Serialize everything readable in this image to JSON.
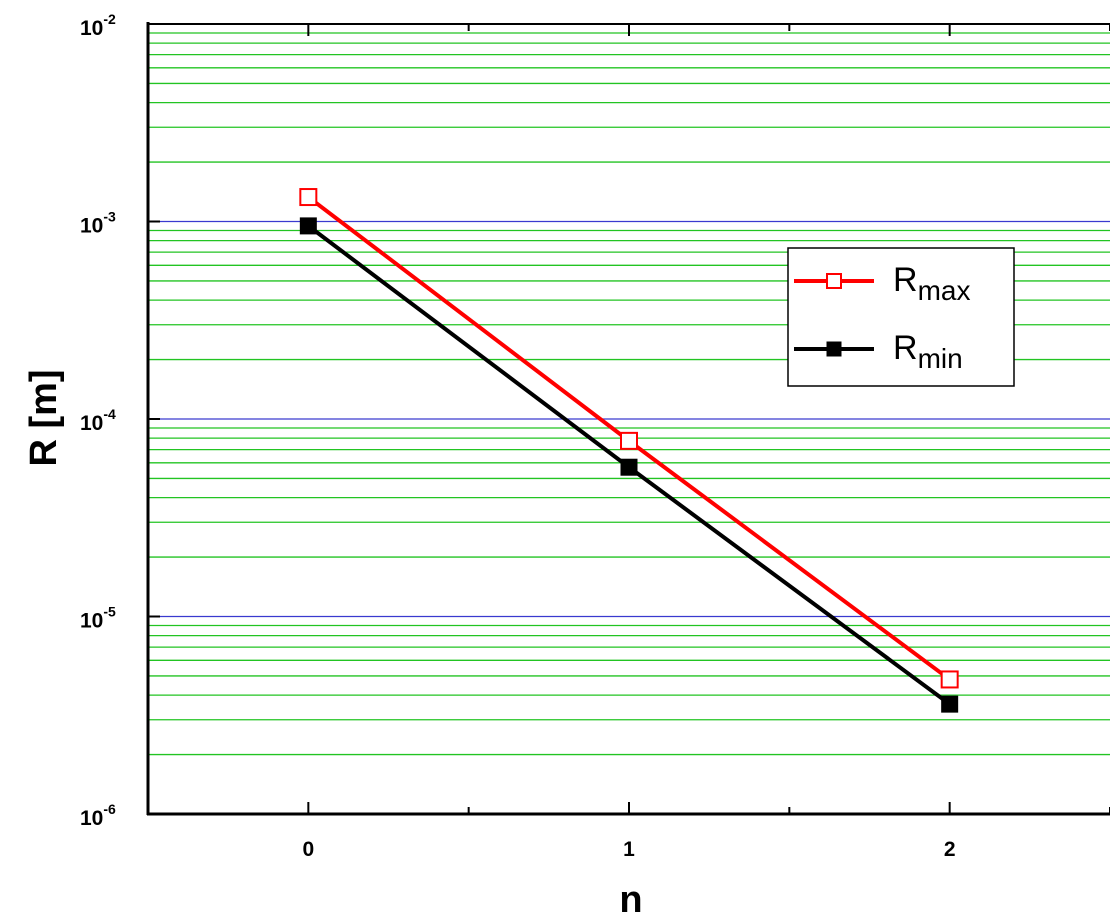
{
  "chart_data": {
    "type": "line",
    "xlabel": "n",
    "ylabel": "R [m]",
    "x_scale": "linear",
    "y_scale": "log",
    "xlim": [
      -0.5,
      2.5
    ],
    "ylim": [
      1e-06,
      0.01
    ],
    "x_ticks": [
      0,
      1,
      2
    ],
    "x_tick_labels": [
      "0",
      "1",
      "2"
    ],
    "y_ticks": [
      1e-06,
      1e-05,
      0.0001,
      0.001,
      0.01
    ],
    "y_tick_labels": [
      {
        "base": "10",
        "exp": "-6"
      },
      {
        "base": "10",
        "exp": "-5"
      },
      {
        "base": "10",
        "exp": "-4"
      },
      {
        "base": "10",
        "exp": "-3"
      },
      {
        "base": "10",
        "exp": "-2"
      }
    ],
    "grid": {
      "major": true,
      "minor": true,
      "major_color": "#3a3acf",
      "minor_color": "#22c422"
    },
    "legend_position": "right",
    "series": [
      {
        "name": "R",
        "name_sub": "max",
        "marker": "open-square",
        "color": "#ff0000",
        "x": [
          0,
          1,
          2
        ],
        "y": [
          0.00133,
          7.75e-05,
          4.8e-06
        ]
      },
      {
        "name": "R",
        "name_sub": "min",
        "marker": "filled-square",
        "color": "#000000",
        "x": [
          0,
          1,
          2
        ],
        "y": [
          0.00095,
          5.7e-05,
          3.6e-06
        ]
      }
    ]
  }
}
